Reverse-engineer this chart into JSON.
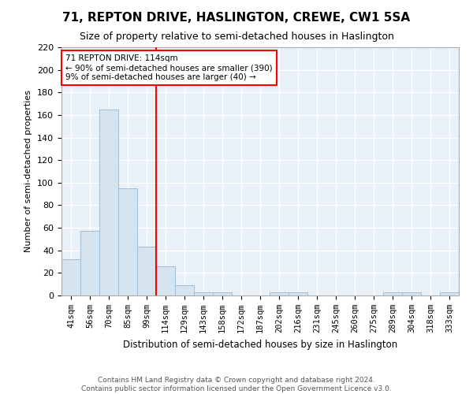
{
  "title": "71, REPTON DRIVE, HASLINGTON, CREWE, CW1 5SA",
  "subtitle": "Size of property relative to semi-detached houses in Haslington",
  "xlabel": "Distribution of semi-detached houses by size in Haslington",
  "ylabel": "Number of semi-detached properties",
  "categories": [
    "41sqm",
    "56sqm",
    "70sqm",
    "85sqm",
    "99sqm",
    "114sqm",
    "129sqm",
    "143sqm",
    "158sqm",
    "172sqm",
    "187sqm",
    "202sqm",
    "216sqm",
    "231sqm",
    "245sqm",
    "260sqm",
    "275sqm",
    "289sqm",
    "304sqm",
    "318sqm",
    "333sqm"
  ],
  "values": [
    32,
    57,
    165,
    95,
    43,
    26,
    9,
    3,
    3,
    0,
    0,
    3,
    3,
    0,
    0,
    0,
    0,
    3,
    3,
    0,
    3
  ],
  "bar_color": "#d6e4f0",
  "bar_edge_color": "#a0bcd4",
  "vline_color": "red",
  "annotation_text": "71 REPTON DRIVE: 114sqm\n← 90% of semi-detached houses are smaller (390)\n9% of semi-detached houses are larger (40) →",
  "annotation_box_color": "white",
  "annotation_box_edge": "red",
  "footer_line1": "Contains HM Land Registry data © Crown copyright and database right 2024.",
  "footer_line2": "Contains public sector information licensed under the Open Government Licence v3.0.",
  "ylim": [
    0,
    220
  ],
  "yticks": [
    0,
    20,
    40,
    60,
    80,
    100,
    120,
    140,
    160,
    180,
    200,
    220
  ],
  "bg_color": "#ffffff",
  "plot_bg_color": "#e8f0f8",
  "grid_color": "#ffffff",
  "title_fontsize": 11,
  "subtitle_fontsize": 9
}
